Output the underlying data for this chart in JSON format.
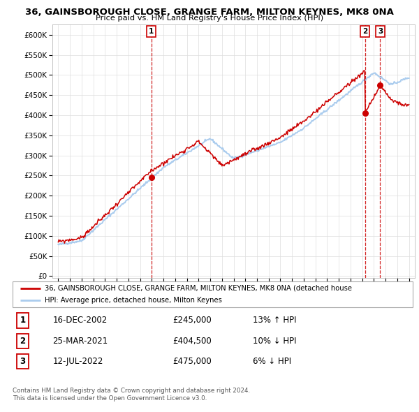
{
  "title": "36, GAINSBOROUGH CLOSE, GRANGE FARM, MILTON KEYNES, MK8 0NA",
  "subtitle": "Price paid vs. HM Land Registry's House Price Index (HPI)",
  "hpi_color": "#aaccee",
  "property_color": "#cc0000",
  "sale_dashed_color": "#cc0000",
  "background_color": "#ffffff",
  "grid_color": "#dddddd",
  "sale_points": [
    {
      "label": "1",
      "date_str": "16-DEC-2002",
      "year": 2002.96,
      "price": 245000,
      "hpi_pct": "13% ↑ HPI"
    },
    {
      "label": "2",
      "date_str": "25-MAR-2021",
      "year": 2021.23,
      "price": 404500,
      "hpi_pct": "10% ↓ HPI"
    },
    {
      "label": "3",
      "date_str": "12-JUL-2022",
      "year": 2022.54,
      "price": 475000,
      "hpi_pct": "6% ↓ HPI"
    }
  ],
  "legend_property_label": "36, GAINSBOROUGH CLOSE, GRANGE FARM, MILTON KEYNES, MK8 0NA (detached house",
  "legend_hpi_label": "HPI: Average price, detached house, Milton Keynes",
  "footer_line1": "Contains HM Land Registry data © Crown copyright and database right 2024.",
  "footer_line2": "This data is licensed under the Open Government Licence v3.0.",
  "yticks": [
    0,
    50000,
    100000,
    150000,
    200000,
    250000,
    300000,
    350000,
    400000,
    450000,
    500000,
    550000,
    600000
  ],
  "ytick_labels": [
    "£0",
    "£50K",
    "£100K",
    "£150K",
    "£200K",
    "£250K",
    "£300K",
    "£350K",
    "£400K",
    "£450K",
    "£500K",
    "£550K",
    "£600K"
  ],
  "xlim": [
    1994.5,
    2025.5
  ],
  "ylim": [
    -5000,
    625000
  ],
  "xtick_years": [
    1995,
    1996,
    1997,
    1998,
    1999,
    2000,
    2001,
    2002,
    2003,
    2004,
    2005,
    2006,
    2007,
    2008,
    2009,
    2010,
    2011,
    2012,
    2013,
    2014,
    2015,
    2016,
    2017,
    2018,
    2019,
    2020,
    2021,
    2022,
    2023,
    2024,
    2025
  ]
}
